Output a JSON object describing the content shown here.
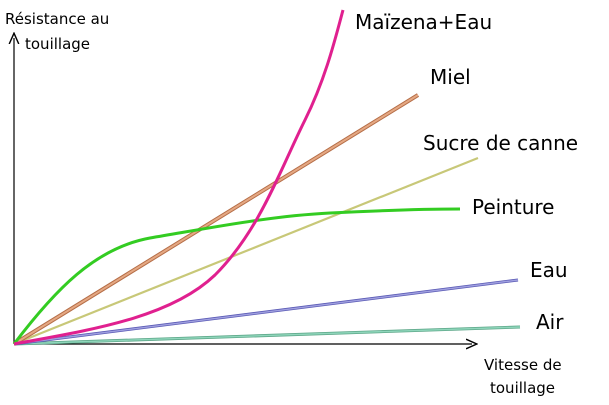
{
  "y_axis_label": [
    "Résistance au",
    "touillage"
  ],
  "x_axis_label": [
    "Vitesse de",
    "touillage"
  ],
  "curves": [
    {
      "label": "Maïzena+Eau"
    },
    {
      "label": "Miel"
    },
    {
      "label": "Sucre de canne"
    },
    {
      "label": "Peinture"
    },
    {
      "label": "Eau"
    },
    {
      "label": "Air"
    }
  ]
}
